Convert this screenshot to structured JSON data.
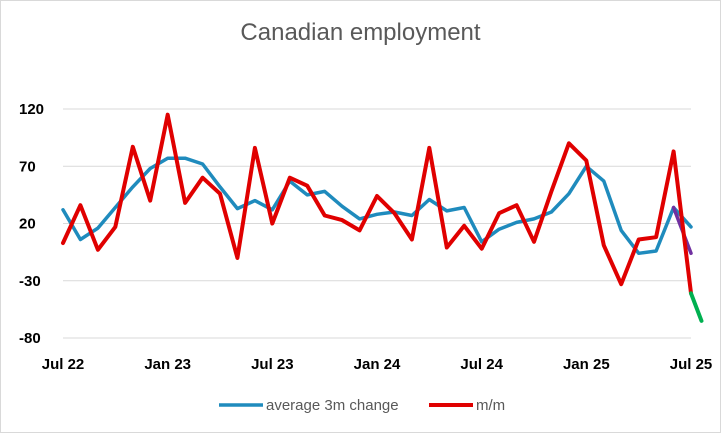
{
  "chart_data": {
    "type": "line",
    "title": "Canadian employment",
    "xlabel": "",
    "ylabel": "",
    "x": [
      "Jul 22",
      "Aug 22",
      "Sep 22",
      "Oct 22",
      "Nov 22",
      "Dec 22",
      "Jan 23",
      "Feb 23",
      "Mar 23",
      "Apr 23",
      "May 23",
      "Jun 23",
      "Jul 23",
      "Aug 23",
      "Sep 23",
      "Oct 23",
      "Nov 23",
      "Dec 23",
      "Jan 24",
      "Feb 24",
      "Mar 24",
      "Apr 24",
      "May 24",
      "Jun 24",
      "Jul 24",
      "Aug 24",
      "Sep 24",
      "Oct 24",
      "Nov 24",
      "Dec 24",
      "Jan 25",
      "Feb 25",
      "Mar 25",
      "Apr 25",
      "May 25",
      "Jun 25",
      "Jul 25"
    ],
    "x_tick_labels": [
      "Jul 22",
      "Jan 23",
      "Jul 23",
      "Jan 24",
      "Jul 24",
      "Jan 25",
      "Jul 25"
    ],
    "x_tick_index": [
      0,
      6,
      12,
      18,
      24,
      30,
      36
    ],
    "ylim": [
      -80,
      120
    ],
    "y_ticks": [
      -80,
      -30,
      20,
      70,
      120
    ],
    "y_tick_labels": [
      "-80",
      "-30",
      "20",
      "70",
      "120"
    ],
    "grid": "horizontal",
    "legend_position": "bottom",
    "series": [
      {
        "name": "average 3m change",
        "color": "#1f8bbd",
        "values": [
          32,
          6,
          16,
          34,
          52,
          68,
          77,
          77,
          72,
          52,
          33,
          40,
          32,
          57,
          45,
          48,
          35,
          24,
          28,
          30,
          27,
          41,
          31,
          34,
          4,
          15,
          21,
          24,
          30,
          46,
          70,
          57,
          14,
          -6,
          -4,
          34,
          17
        ],
        "tail": {
          "from_index": 35,
          "to_index": 36,
          "to_value": -6,
          "color": "#7030a0"
        }
      },
      {
        "name": "m/m",
        "color": "#e00000",
        "values": [
          3,
          36,
          -3,
          17,
          87,
          40,
          115,
          38,
          60,
          46,
          -10,
          86,
          20,
          60,
          53,
          27,
          23,
          14,
          44,
          29,
          6,
          86,
          -1,
          18,
          -2,
          29,
          36,
          4,
          48,
          90,
          75,
          1,
          -33,
          6,
          8,
          83,
          -41
        ],
        "tail": {
          "from_index": 36,
          "to_index": 36.6,
          "to_value": -65,
          "color": "#00b050"
        }
      }
    ]
  }
}
